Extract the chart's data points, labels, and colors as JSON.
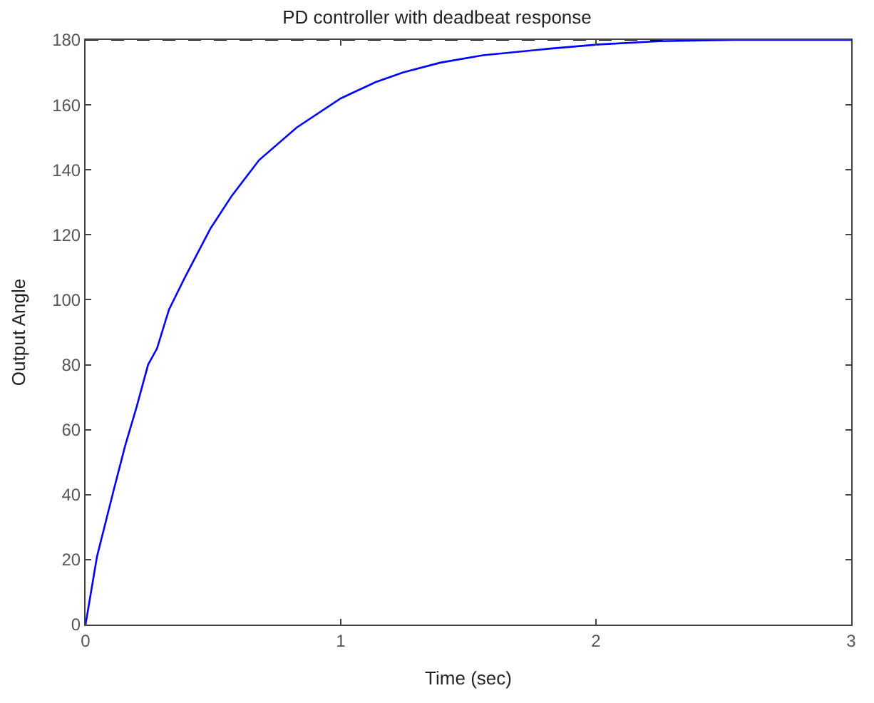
{
  "chart_data": {
    "type": "line",
    "title": "PD controller with deadbeat response",
    "xlabel": "Time (sec)",
    "ylabel": "Output Angle",
    "x": [
      0,
      0.045,
      0.109,
      0.155,
      0.2,
      0.245,
      0.28,
      0.327,
      0.39,
      0.49,
      0.573,
      0.68,
      0.827,
      1.0,
      1.136,
      1.245,
      1.39,
      1.557,
      1.83,
      2.01,
      2.25,
      2.54,
      3.0
    ],
    "series": [
      {
        "color": "#0000ff",
        "values": [
          0,
          21,
          41,
          55,
          67,
          80,
          85,
          97,
          107,
          122,
          132,
          143,
          153,
          162,
          167,
          170,
          173,
          175.3,
          177.4,
          178.6,
          179.6,
          180,
          180
        ]
      }
    ],
    "xlim": [
      0,
      3
    ],
    "xticks": [
      0,
      1,
      2,
      3
    ],
    "ylim": [
      0,
      180
    ],
    "yticks": [
      0,
      20,
      40,
      60,
      80,
      100,
      120,
      140,
      160,
      180
    ],
    "ref_lines": [
      {
        "axis": "y",
        "value": 180,
        "color": "#000000",
        "line_style": "dashed"
      }
    ],
    "marker": "none",
    "line_style": "solid"
  }
}
